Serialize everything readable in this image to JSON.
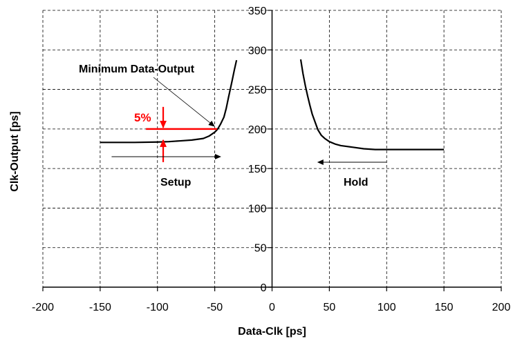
{
  "chart_data": {
    "type": "line",
    "title": "",
    "xlabel": "Data-Clk [ps]",
    "ylabel": "Clk-Output [ps]",
    "xlim": [
      -200,
      200
    ],
    "ylim": [
      0,
      350
    ],
    "xticks": [
      -200,
      -150,
      -100,
      -50,
      0,
      50,
      100,
      150,
      200
    ],
    "yticks": [
      0,
      50,
      100,
      150,
      200,
      250,
      300,
      350
    ],
    "grid": "dashed",
    "legend": "none",
    "series": [
      {
        "x": [
          -150,
          -140,
          -120,
          -100,
          -90,
          -80,
          -70,
          -60,
          -55,
          -50,
          -48,
          -47,
          -45,
          -42,
          -40,
          -38,
          -35,
          -33,
          -31
        ],
        "values": [
          183,
          183,
          183,
          183.5,
          184,
          185,
          186,
          188,
          191,
          196,
          199,
          201,
          206,
          215,
          226,
          240,
          260,
          274,
          287
        ]
      },
      {
        "x": [
          25,
          27,
          29,
          31,
          33,
          35,
          38,
          40,
          43,
          46,
          50,
          55,
          60,
          70,
          80,
          90,
          100,
          120,
          150
        ],
        "values": [
          288,
          270,
          255,
          242,
          230,
          219,
          207,
          199,
          192,
          188,
          184,
          181,
          179,
          177,
          175,
          174,
          174,
          174,
          174
        ]
      }
    ],
    "annotations": {
      "minimum_label": "Minimum Data-Output",
      "setup_label": "Setup",
      "hold_label": "Hold",
      "percent_label": "5%",
      "minimum_point": [
        -48,
        200
      ],
      "red_line": {
        "x": [
          -110,
          -48
        ],
        "y": 200
      },
      "red_arrow_x": -95,
      "setup_arrow": {
        "x": [
          -140,
          -45
        ],
        "y": 165
      },
      "hold_arrow": {
        "x": [
          100,
          40
        ],
        "y": 158
      }
    },
    "colors": {
      "curve": "#000000",
      "grid": "#000000",
      "highlight": "#ff0000"
    }
  }
}
